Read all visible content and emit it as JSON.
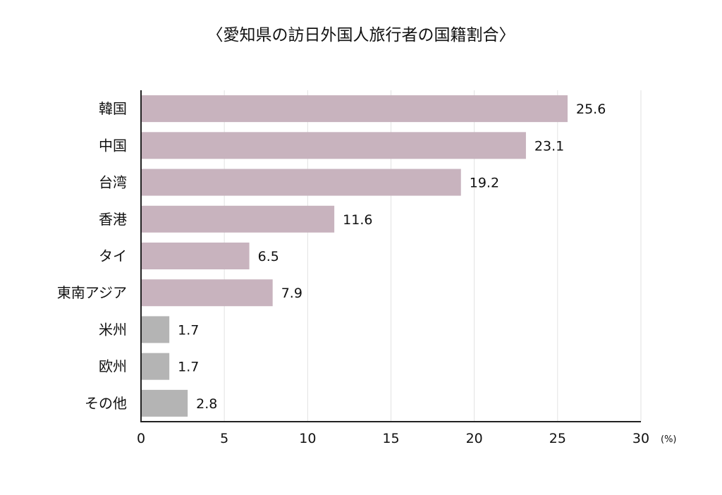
{
  "chart_data": {
    "type": "bar",
    "orientation": "horizontal",
    "title": "〈愛知県の訪日外国人旅行者の国籍割合〉",
    "categories": [
      "韓国",
      "中国",
      "台湾",
      "香港",
      "タイ",
      "東南アジア",
      "米州",
      "欧州",
      "その他"
    ],
    "values": [
      25.6,
      23.1,
      19.2,
      11.6,
      6.5,
      7.9,
      1.7,
      1.7,
      2.8
    ],
    "bar_colors": [
      "#c8b3be",
      "#c8b3be",
      "#c8b3be",
      "#c8b3be",
      "#c8b3be",
      "#c8b3be",
      "#b4b4b4",
      "#b4b4b4",
      "#b4b4b4"
    ],
    "xlim": [
      0,
      30
    ],
    "xticks": [
      0,
      5,
      10,
      15,
      20,
      25,
      30
    ],
    "xunit": "(%)",
    "grid": true,
    "xlabel": "",
    "ylabel": ""
  }
}
